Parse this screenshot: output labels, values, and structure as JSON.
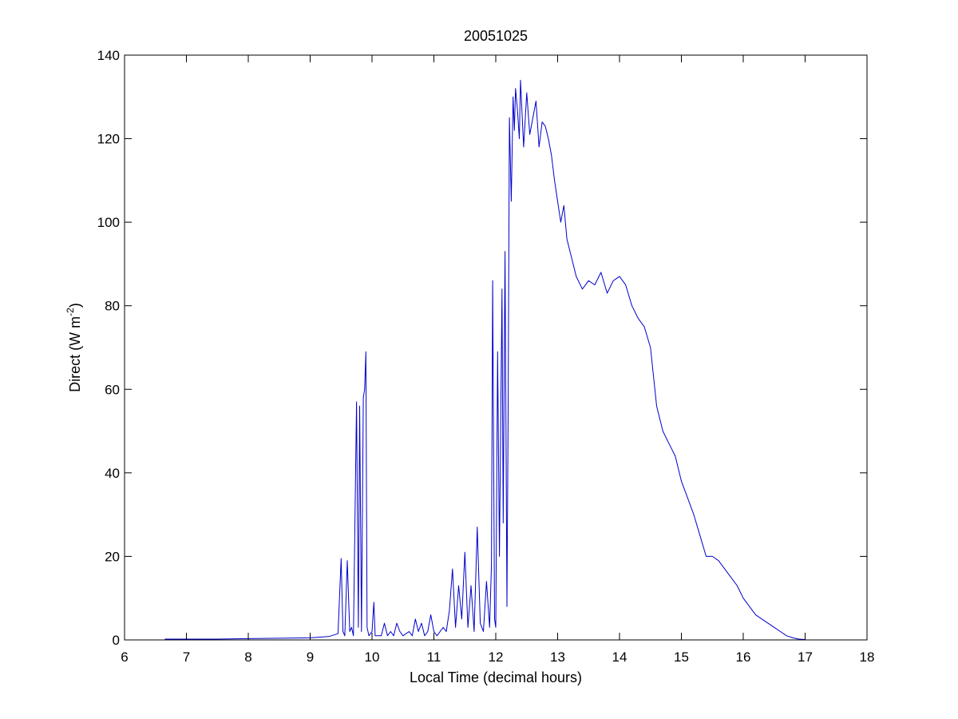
{
  "chart_data": {
    "type": "line",
    "title": "20051025",
    "xlabel": "Local Time (decimal hours)",
    "ylabel_main": "Direct (W m",
    "ylabel_sup": "-2",
    "ylabel_tail": ")",
    "xlim": [
      6,
      18
    ],
    "ylim": [
      0,
      140
    ],
    "xticks": [
      6,
      7,
      8,
      9,
      10,
      11,
      12,
      13,
      14,
      15,
      16,
      17,
      18
    ],
    "yticks": [
      0,
      20,
      40,
      60,
      80,
      100,
      120,
      140
    ],
    "grid": false,
    "line_color": "#0000cc",
    "series": [
      {
        "x": [
          6.65,
          7.0,
          7.5,
          8.0,
          8.5,
          9.0,
          9.3,
          9.45,
          9.5,
          9.53,
          9.56,
          9.6,
          9.64,
          9.67,
          9.7,
          9.75,
          9.78,
          9.8,
          9.83,
          9.86,
          9.88,
          9.9,
          9.92,
          9.95,
          10.0,
          10.03,
          10.05,
          10.08,
          10.15,
          10.2,
          10.25,
          10.3,
          10.35,
          10.4,
          10.45,
          10.5,
          10.6,
          10.65,
          10.7,
          10.75,
          10.8,
          10.85,
          10.9,
          10.95,
          11.0,
          11.05,
          11.1,
          11.15,
          11.2,
          11.25,
          11.3,
          11.35,
          11.4,
          11.45,
          11.5,
          11.55,
          11.6,
          11.65,
          11.7,
          11.75,
          11.8,
          11.85,
          11.9,
          11.93,
          11.95,
          11.98,
          12.0,
          12.03,
          12.06,
          12.1,
          12.12,
          12.15,
          12.18,
          12.2,
          12.22,
          12.25,
          12.28,
          12.3,
          12.32,
          12.35,
          12.38,
          12.4,
          12.45,
          12.5,
          12.55,
          12.6,
          12.65,
          12.7,
          12.75,
          12.8,
          12.85,
          12.9,
          12.95,
          13.0,
          13.05,
          13.1,
          13.15,
          13.2,
          13.3,
          13.4,
          13.5,
          13.6,
          13.7,
          13.8,
          13.9,
          14.0,
          14.1,
          14.2,
          14.3,
          14.4,
          14.5,
          14.6,
          14.7,
          14.8,
          14.9,
          15.0,
          15.1,
          15.2,
          15.3,
          15.4,
          15.5,
          15.6,
          15.7,
          15.8,
          15.9,
          16.0,
          16.1,
          16.2,
          16.3,
          16.4,
          16.5,
          16.6,
          16.7,
          16.8,
          16.9,
          17.0
        ],
        "y": [
          0.2,
          0.2,
          0.2,
          0.3,
          0.4,
          0.5,
          0.8,
          1.5,
          19.5,
          2,
          1,
          19,
          2,
          3,
          1,
          57,
          3,
          56,
          2,
          58,
          60,
          69,
          3,
          1,
          2,
          9,
          1,
          1,
          1,
          4,
          1,
          2,
          1,
          4,
          2,
          1,
          2,
          1,
          5,
          2,
          4,
          1,
          2,
          6,
          2,
          1,
          2,
          3,
          2,
          7,
          17,
          3,
          13,
          5,
          21,
          3,
          13,
          2,
          27,
          4,
          2,
          14,
          3,
          18,
          86,
          5,
          3,
          69,
          20,
          84,
          28,
          93,
          8,
          55,
          125,
          105,
          130,
          122,
          132,
          127,
          120,
          134,
          118,
          131,
          121,
          125,
          129,
          118,
          124,
          123,
          120,
          116,
          110,
          105,
          100,
          104,
          96,
          93,
          87,
          84,
          86,
          85,
          88,
          83,
          86,
          87,
          85,
          80,
          77,
          75,
          70,
          56,
          50,
          47,
          44,
          38,
          34,
          30,
          25,
          20,
          20,
          19,
          17,
          15,
          13,
          10,
          8,
          6,
          5,
          4,
          3,
          2,
          1,
          0.5,
          0.2,
          0.1
        ]
      }
    ]
  }
}
